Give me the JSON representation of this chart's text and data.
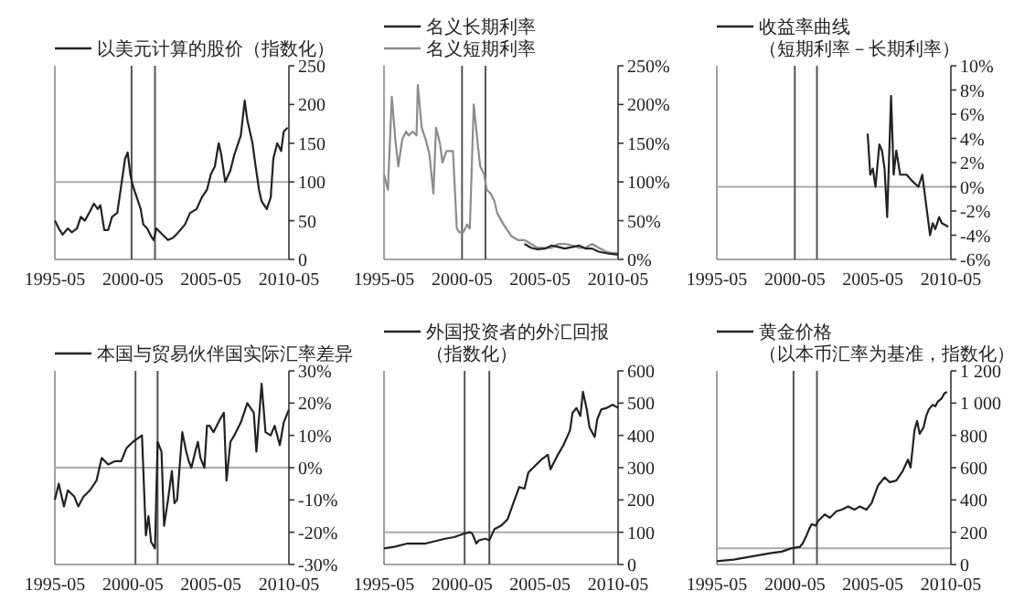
{
  "chart_data": [
    {
      "type": "line",
      "xlim": [
        "1995-05",
        "2010-05"
      ],
      "xticks": [
        "1995-05",
        "2000-05",
        "2005-05",
        "2010-05"
      ],
      "ylim": [
        0,
        250
      ],
      "yticks": [
        0,
        50,
        100,
        150,
        200,
        250
      ],
      "legend": "top",
      "ref_lines": [
        {
          "axis": "y",
          "value": 100,
          "color": "#aaaaaa"
        },
        {
          "axis": "x",
          "value": "2000-04",
          "color": "#555555"
        },
        {
          "axis": "x",
          "value": "2001-10",
          "color": "#555555"
        }
      ],
      "series": [
        {
          "name": "以美元计算的股价（指数化）",
          "color": "#222222",
          "x": [
            "1995-05",
            "1995-08",
            "1995-11",
            "1996-03",
            "1996-06",
            "1996-10",
            "1997-01",
            "1997-04",
            "1997-08",
            "1997-11",
            "1998-02",
            "1998-04",
            "1998-07",
            "1998-10",
            "1999-01",
            "1999-05",
            "1999-08",
            "1999-11",
            "2000-01",
            "2000-03",
            "2000-05",
            "2000-08",
            "2000-11",
            "2001-01",
            "2001-04",
            "2001-07",
            "2001-09",
            "2001-11",
            "2002-02",
            "2002-05",
            "2002-08",
            "2002-12",
            "2003-04",
            "2003-09",
            "2004-01",
            "2004-06",
            "2004-10",
            "2005-02",
            "2005-05",
            "2005-08",
            "2005-11",
            "2006-01",
            "2006-04",
            "2006-08",
            "2006-11",
            "2007-04",
            "2007-07",
            "2007-09",
            "2008-01",
            "2008-03",
            "2008-06",
            "2008-08",
            "2008-12",
            "2009-03",
            "2009-05",
            "2009-08",
            "2009-11",
            "2010-01",
            "2010-04"
          ],
          "values": [
            50,
            40,
            32,
            40,
            35,
            40,
            55,
            50,
            62,
            72,
            65,
            70,
            38,
            38,
            55,
            60,
            95,
            130,
            138,
            110,
            95,
            80,
            65,
            45,
            40,
            30,
            25,
            40,
            35,
            30,
            25,
            28,
            35,
            45,
            60,
            65,
            80,
            90,
            110,
            120,
            150,
            135,
            100,
            115,
            135,
            160,
            205,
            180,
            150,
            125,
            90,
            75,
            65,
            80,
            130,
            150,
            140,
            165,
            170
          ]
        }
      ]
    },
    {
      "type": "line",
      "xlim": [
        "1995-05",
        "2010-05"
      ],
      "xticks": [
        "1995-05",
        "2000-05",
        "2005-05",
        "2010-05"
      ],
      "ylim": [
        0,
        250
      ],
      "yticks": [
        {
          "value": 0,
          "label": "0%"
        },
        {
          "value": 50,
          "label": "50%"
        },
        {
          "value": 100,
          "label": "100%"
        },
        {
          "value": 150,
          "label": "150%"
        },
        {
          "value": 200,
          "label": "200%"
        },
        {
          "value": 250,
          "label": "250%"
        }
      ],
      "legend": "top",
      "ref_lines": [
        {
          "axis": "x",
          "value": "2000-05",
          "color": "#555555"
        },
        {
          "axis": "x",
          "value": "2001-11",
          "color": "#555555"
        }
      ],
      "series": [
        {
          "name": "名义长期利率",
          "color": "#222222",
          "x": [
            "2004-05",
            "2004-10",
            "2005-03",
            "2005-09",
            "2006-02",
            "2006-07",
            "2006-12",
            "2007-06",
            "2007-11",
            "2008-04",
            "2008-09",
            "2009-02",
            "2009-08",
            "2010-01",
            "2010-05"
          ],
          "values": [
            20,
            15,
            13,
            14,
            18,
            16,
            14,
            16,
            18,
            14,
            14,
            10,
            8,
            7,
            6
          ]
        },
        {
          "name": "名义短期利率",
          "color": "#8c8c8c",
          "x": [
            "1995-05",
            "1995-08",
            "1995-11",
            "1996-02",
            "1996-04",
            "1996-07",
            "1996-10",
            "1996-12",
            "1997-03",
            "1997-06",
            "1997-07",
            "1997-10",
            "1998-01",
            "1998-04",
            "1998-07",
            "1998-09",
            "1998-12",
            "1999-02",
            "1999-05",
            "1999-08",
            "1999-10",
            "2000-01",
            "2000-03",
            "2000-06",
            "2000-09",
            "2000-11",
            "2001-02",
            "2001-05",
            "2001-07",
            "2001-10",
            "2001-12",
            "2002-03",
            "2002-06",
            "2002-08",
            "2003-01",
            "2003-07",
            "2003-12",
            "2004-05",
            "2004-10",
            "2005-03",
            "2005-09",
            "2006-02",
            "2006-07",
            "2006-12",
            "2007-06",
            "2007-11",
            "2008-04",
            "2008-09",
            "2009-02",
            "2009-08",
            "2010-01",
            "2010-05"
          ],
          "values": [
            110,
            90,
            210,
            150,
            120,
            155,
            165,
            160,
            165,
            160,
            225,
            170,
            155,
            135,
            85,
            170,
            150,
            125,
            140,
            140,
            140,
            40,
            35,
            35,
            45,
            40,
            200,
            150,
            120,
            110,
            90,
            85,
            75,
            60,
            45,
            30,
            25,
            25,
            20,
            15,
            15,
            15,
            20,
            20,
            18,
            15,
            15,
            20,
            15,
            10,
            8,
            8
          ]
        }
      ]
    },
    {
      "type": "line",
      "xlim": [
        "1995-05",
        "2010-05"
      ],
      "xticks": [
        "1995-05",
        "2000-05",
        "2005-05",
        "2010-05"
      ],
      "ylim": [
        -6,
        10
      ],
      "yticks": [
        {
          "value": -6,
          "label": "-6%"
        },
        {
          "value": -4,
          "label": "-4%"
        },
        {
          "value": -2,
          "label": "-2%"
        },
        {
          "value": 0,
          "label": "0%"
        },
        {
          "value": 2,
          "label": "2%"
        },
        {
          "value": 4,
          "label": "4%"
        },
        {
          "value": 6,
          "label": "6%"
        },
        {
          "value": 8,
          "label": "8%"
        },
        {
          "value": 10,
          "label": "10%"
        }
      ],
      "legend": "top",
      "ref_lines": [
        {
          "axis": "y",
          "value": 0,
          "color": "#aaaaaa"
        },
        {
          "axis": "x",
          "value": "2000-05",
          "color": "#555555"
        },
        {
          "axis": "x",
          "value": "2001-10",
          "color": "#555555"
        }
      ],
      "series": [
        {
          "name": "收益率曲线（短期利率－长期利率）",
          "color": "#222222",
          "x": [
            "2005-01",
            "2005-03",
            "2005-05",
            "2005-07",
            "2005-10",
            "2005-12",
            "2006-02",
            "2006-04",
            "2006-07",
            "2006-09",
            "2006-11",
            "2007-02",
            "2007-07",
            "2007-11",
            "2008-04",
            "2008-07",
            "2008-10",
            "2009-01",
            "2009-03",
            "2009-05",
            "2009-08",
            "2009-10",
            "2010-03"
          ],
          "values": [
            4.4,
            1,
            1.5,
            0,
            3.5,
            3,
            1.5,
            -2.5,
            7.5,
            1,
            3,
            1,
            1,
            0.5,
            0,
            1,
            -1.5,
            -4,
            -3,
            -3.5,
            -2.5,
            -3,
            -3.3
          ]
        }
      ]
    },
    {
      "type": "line",
      "xlim": [
        "1995-05",
        "2010-05"
      ],
      "xticks": [
        "1995-05",
        "2000-05",
        "2005-05",
        "2010-05"
      ],
      "ylim": [
        -30,
        30
      ],
      "yticks": [
        {
          "value": -30,
          "label": "-30%"
        },
        {
          "value": -20,
          "label": "-20%"
        },
        {
          "value": -10,
          "label": "-10%"
        },
        {
          "value": 0,
          "label": "0%"
        },
        {
          "value": 10,
          "label": "10%"
        },
        {
          "value": 20,
          "label": "20%"
        },
        {
          "value": 30,
          "label": "30%"
        }
      ],
      "legend": "top",
      "ref_lines": [
        {
          "axis": "y",
          "value": 0,
          "color": "#aaaaaa"
        },
        {
          "axis": "x",
          "value": "2000-07",
          "color": "#555555"
        },
        {
          "axis": "x",
          "value": "2001-12",
          "color": "#555555"
        }
      ],
      "series": [
        {
          "name": "本国与贸易伙伴国实际汇率差异",
          "color": "#222222",
          "x": [
            "1995-05",
            "1995-08",
            "1995-12",
            "1996-03",
            "1996-08",
            "1996-11",
            "1997-03",
            "1997-08",
            "1998-01",
            "1998-05",
            "1998-10",
            "1999-03",
            "1999-08",
            "1999-12",
            "2000-05",
            "2000-12",
            "2001-03",
            "2001-05",
            "2001-07",
            "2001-10",
            "2001-12",
            "2002-03",
            "2002-05",
            "2002-08",
            "2002-11",
            "2003-01",
            "2003-03",
            "2003-07",
            "2003-10",
            "2003-12",
            "2004-02",
            "2004-05",
            "2004-07",
            "2004-09",
            "2004-12",
            "2005-02",
            "2005-04",
            "2005-07",
            "2005-12",
            "2006-03",
            "2006-05",
            "2006-08",
            "2006-11",
            "2007-04",
            "2007-09",
            "2008-02",
            "2008-04",
            "2008-08",
            "2008-11",
            "2009-03",
            "2009-06",
            "2009-10",
            "2010-01",
            "2010-05"
          ],
          "values": [
            -10,
            -5,
            -12,
            -7,
            -9,
            -12,
            -9,
            -7,
            -4,
            3,
            1,
            2,
            2,
            6,
            8,
            10,
            -21,
            -15,
            -23,
            -25,
            8,
            5,
            -18,
            -10,
            -1,
            -11,
            -10,
            11,
            5,
            2,
            0,
            5,
            8,
            3,
            0,
            13,
            13,
            11,
            15,
            17,
            -4,
            8,
            10,
            14,
            20,
            17,
            5,
            26,
            11,
            10,
            13,
            7,
            14,
            18
          ]
        }
      ]
    },
    {
      "type": "line",
      "xlim": [
        "1995-05",
        "2010-05"
      ],
      "xticks": [
        "1995-05",
        "2000-05",
        "2005-05",
        "2010-05"
      ],
      "ylim": [
        0,
        600
      ],
      "yticks": [
        0,
        100,
        200,
        300,
        400,
        500,
        600
      ],
      "legend": "top",
      "ref_lines": [
        {
          "axis": "y",
          "value": 100,
          "color": "#aaaaaa"
        },
        {
          "axis": "x",
          "value": "2000-07",
          "color": "#555555"
        },
        {
          "axis": "x",
          "value": "2002-02",
          "color": "#555555"
        }
      ],
      "series": [
        {
          "name": "外国投资者的外汇回报（指数化）",
          "color": "#222222",
          "x": [
            "1995-05",
            "1996-01",
            "1996-11",
            "1998-01",
            "1999-04",
            "1999-11",
            "2000-06",
            "2000-11",
            "2001-01",
            "2001-04",
            "2001-06",
            "2001-11",
            "2002-02",
            "2002-06",
            "2002-11",
            "2003-04",
            "2003-08",
            "2004-01",
            "2004-05",
            "2004-08",
            "2005-01",
            "2005-06",
            "2005-11",
            "2006-01",
            "2006-06",
            "2006-11",
            "2007-04",
            "2007-06",
            "2007-09",
            "2007-12",
            "2008-02",
            "2008-05",
            "2008-07",
            "2008-11",
            "2009-01",
            "2009-04",
            "2009-08",
            "2010-01",
            "2010-05"
          ],
          "values": [
            50,
            55,
            65,
            65,
            80,
            85,
            95,
            100,
            95,
            65,
            75,
            80,
            75,
            110,
            120,
            140,
            185,
            240,
            235,
            285,
            305,
            325,
            340,
            295,
            335,
            370,
            415,
            470,
            485,
            460,
            535,
            480,
            425,
            395,
            450,
            480,
            485,
            495,
            485
          ]
        }
      ]
    },
    {
      "type": "line",
      "xlim": [
        "1995-05",
        "2010-05"
      ],
      "xticks": [
        "1995-05",
        "2000-05",
        "2005-05",
        "2010-05"
      ],
      "ylim": [
        0,
        1200
      ],
      "yticks": [
        0,
        200,
        400,
        600,
        800,
        {
          "value": 1000,
          "label": "1 000"
        },
        {
          "value": 1200,
          "label": "1 200"
        }
      ],
      "legend": "top",
      "ref_lines": [
        {
          "axis": "y",
          "value": 100,
          "color": "#aaaaaa"
        },
        {
          "axis": "x",
          "value": "2000-04",
          "color": "#555555"
        },
        {
          "axis": "x",
          "value": "2001-10",
          "color": "#555555"
        }
      ],
      "series": [
        {
          "name": "黄金价格（以本币汇率为基准，指数化）",
          "color": "#222222",
          "x": [
            "1995-05",
            "1996-06",
            "1997-08",
            "1998-10",
            "1999-07",
            "2000-02",
            "2000-09",
            "2000-11",
            "2001-02",
            "2001-04",
            "2001-06",
            "2001-09",
            "2001-11",
            "2002-04",
            "2002-08",
            "2003-01",
            "2003-05",
            "2003-10",
            "2004-03",
            "2004-07",
            "2004-12",
            "2005-04",
            "2005-09",
            "2006-02",
            "2006-06",
            "2006-11",
            "2007-04",
            "2007-08",
            "2007-10",
            "2008-01",
            "2008-03",
            "2008-05",
            "2008-08",
            "2008-10",
            "2008-12",
            "2009-03",
            "2009-05",
            "2009-07",
            "2009-10",
            "2009-12",
            "2010-02"
          ],
          "values": [
            20,
            30,
            50,
            70,
            80,
            100,
            110,
            130,
            180,
            220,
            250,
            240,
            270,
            310,
            290,
            330,
            340,
            360,
            340,
            360,
            340,
            380,
            490,
            540,
            510,
            520,
            580,
            650,
            600,
            830,
            890,
            810,
            850,
            920,
            960,
            990,
            980,
            1010,
            1030,
            1060,
            1070
          ]
        }
      ]
    }
  ]
}
